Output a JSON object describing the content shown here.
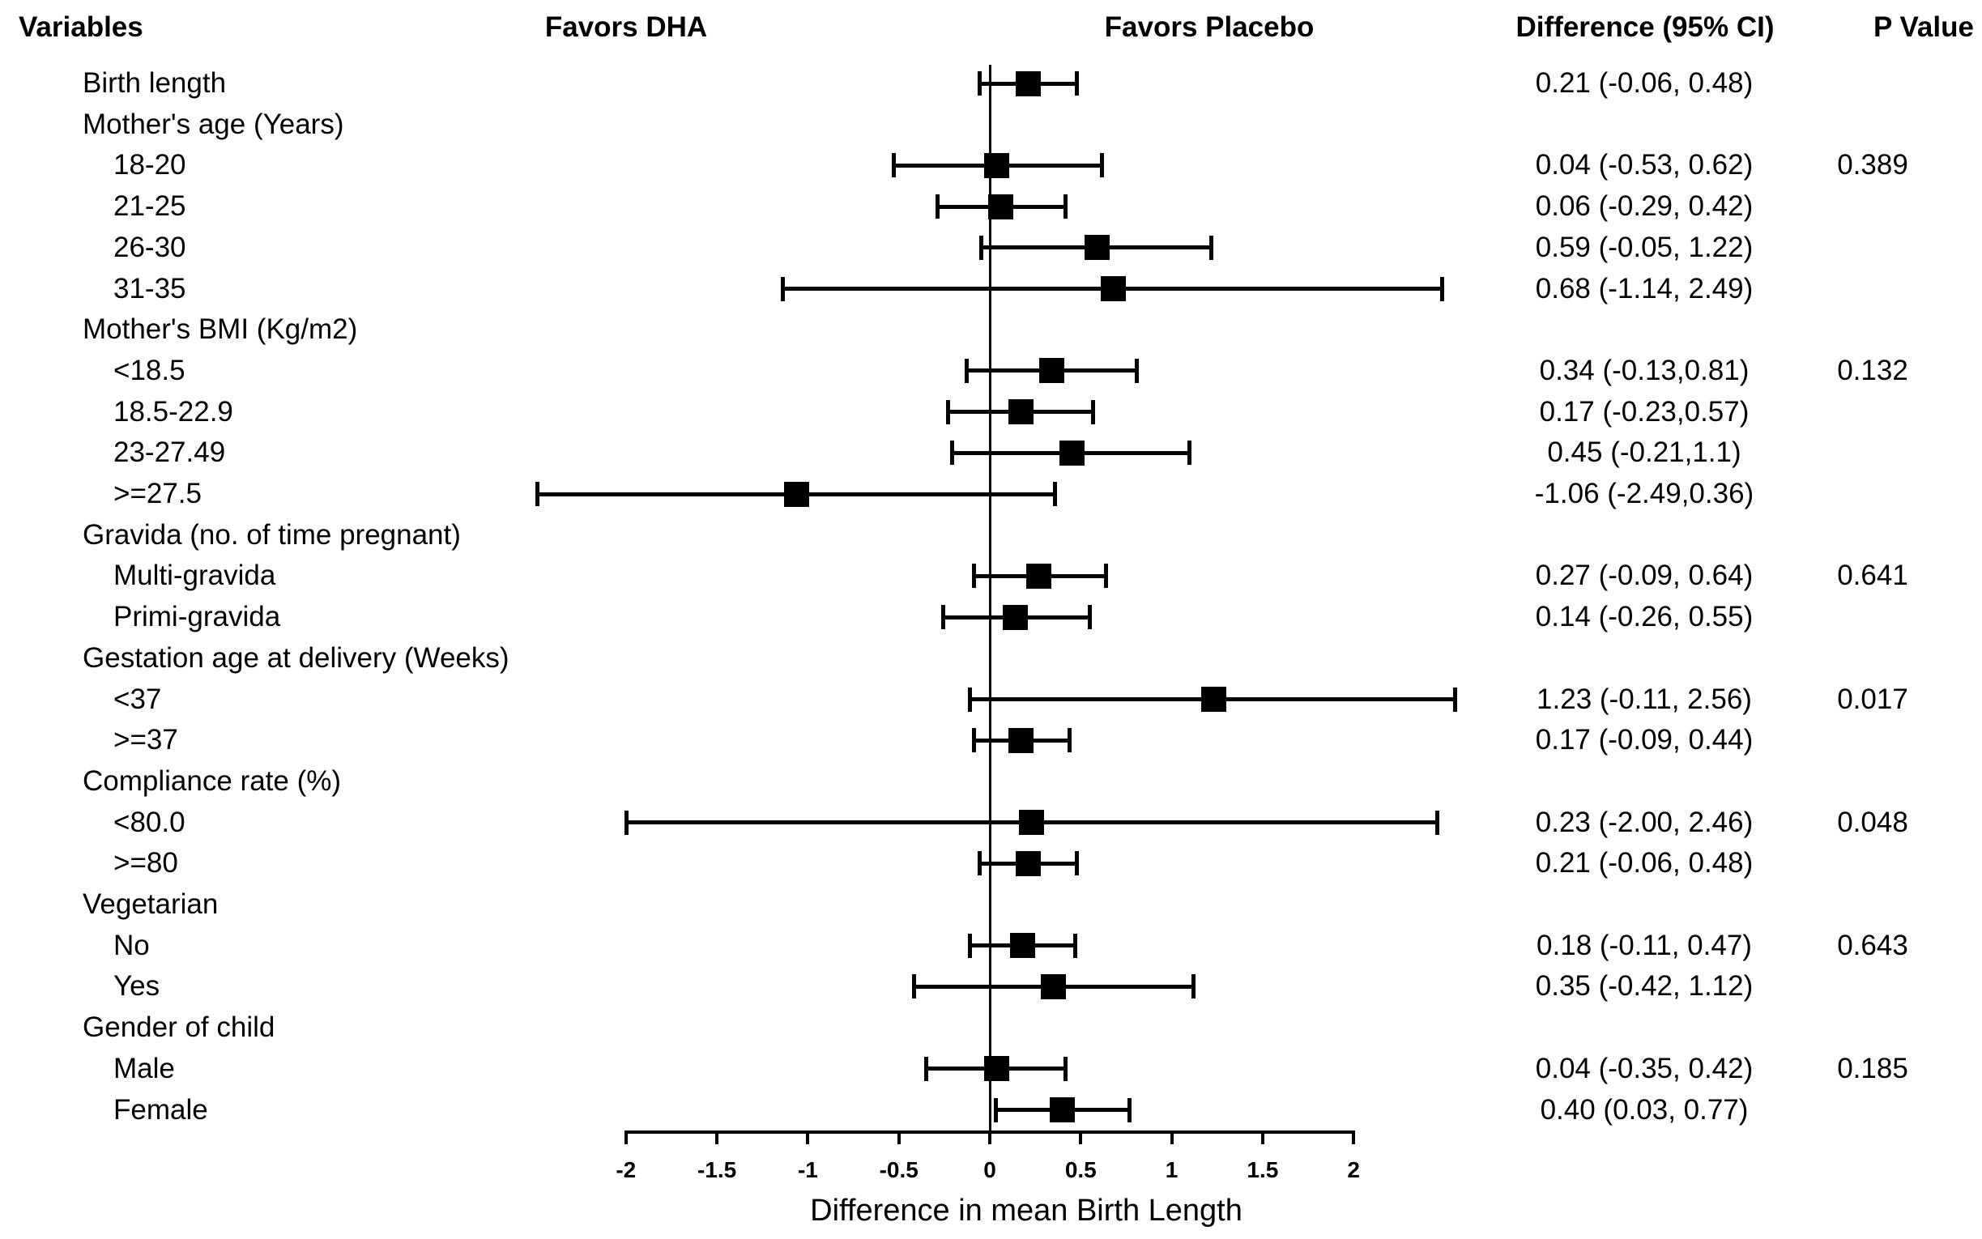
{
  "colors": {
    "foreground": "#000000",
    "background": "#ffffff"
  },
  "chart_data": {
    "type": "scatter",
    "subtype": "forest-plot",
    "title": "",
    "xlabel": "Difference in mean Birth Length",
    "columns": {
      "variables": "Variables",
      "favors_left": "Favors DHA",
      "favors_right": "Favors Placebo",
      "difference": "Difference (95% CI)",
      "p_value": "P Value"
    },
    "x_axis": {
      "min": -2,
      "max": 2,
      "tick_values": [
        -2,
        -1.5,
        -1,
        -0.5,
        0,
        0.5,
        1,
        1.5,
        2
      ],
      "tick_labels": [
        "-2",
        "-1.5",
        "-1",
        "-0.5",
        "0",
        "0.5",
        "1",
        "1.5",
        "2"
      ]
    },
    "reference_line": 0,
    "rows": [
      {
        "label": "Birth length",
        "kind": "data",
        "indent": 0,
        "estimate": 0.21,
        "lower": -0.06,
        "upper": 0.48,
        "ci_text": "0.21 (-0.06, 0.48)",
        "p_value": ""
      },
      {
        "label": "Mother's age (Years)",
        "kind": "group",
        "indent": 0
      },
      {
        "label": "18-20",
        "kind": "data",
        "indent": 1,
        "estimate": 0.04,
        "lower": -0.53,
        "upper": 0.62,
        "ci_text": "0.04 (-0.53, 0.62)",
        "p_value": "0.389"
      },
      {
        "label": "21-25",
        "kind": "data",
        "indent": 1,
        "estimate": 0.06,
        "lower": -0.29,
        "upper": 0.42,
        "ci_text": "0.06 (-0.29, 0.42)",
        "p_value": ""
      },
      {
        "label": "26-30",
        "kind": "data",
        "indent": 1,
        "estimate": 0.59,
        "lower": -0.05,
        "upper": 1.22,
        "ci_text": "0.59 (-0.05, 1.22)",
        "p_value": ""
      },
      {
        "label": "31-35",
        "kind": "data",
        "indent": 1,
        "estimate": 0.68,
        "lower": -1.14,
        "upper": 2.49,
        "ci_text": "0.68 (-1.14, 2.49)",
        "p_value": ""
      },
      {
        "label": "Mother's BMI (Kg/m2)",
        "kind": "group",
        "indent": 0
      },
      {
        "label": "<18.5",
        "kind": "data",
        "indent": 1,
        "estimate": 0.34,
        "lower": -0.13,
        "upper": 0.81,
        "ci_text": "0.34 (-0.13,0.81)",
        "p_value": "0.132"
      },
      {
        "label": "18.5-22.9",
        "kind": "data",
        "indent": 1,
        "estimate": 0.17,
        "lower": -0.23,
        "upper": 0.57,
        "ci_text": "0.17 (-0.23,0.57)",
        "p_value": ""
      },
      {
        "label": "23-27.49",
        "kind": "data",
        "indent": 1,
        "estimate": 0.45,
        "lower": -0.21,
        "upper": 1.1,
        "ci_text": "0.45 (-0.21,1.1)",
        "p_value": ""
      },
      {
        "label": ">=27.5",
        "kind": "data",
        "indent": 1,
        "estimate": -1.06,
        "lower": -2.49,
        "upper": 0.36,
        "ci_text": "-1.06 (-2.49,0.36)",
        "p_value": ""
      },
      {
        "label": "Gravida (no. of time pregnant)",
        "kind": "group",
        "indent": 0
      },
      {
        "label": "Multi-gravida",
        "kind": "data",
        "indent": 1,
        "estimate": 0.27,
        "lower": -0.09,
        "upper": 0.64,
        "ci_text": "0.27 (-0.09, 0.64)",
        "p_value": "0.641"
      },
      {
        "label": "Primi-gravida",
        "kind": "data",
        "indent": 1,
        "estimate": 0.14,
        "lower": -0.26,
        "upper": 0.55,
        "ci_text": "0.14 (-0.26, 0.55)",
        "p_value": ""
      },
      {
        "label": "Gestation age at delivery (Weeks)",
        "kind": "group",
        "indent": 0
      },
      {
        "label": "<37",
        "kind": "data",
        "indent": 1,
        "estimate": 1.23,
        "lower": -0.11,
        "upper": 2.56,
        "ci_text": "1.23 (-0.11, 2.56)",
        "p_value": "0.017"
      },
      {
        "label": ">=37",
        "kind": "data",
        "indent": 1,
        "estimate": 0.17,
        "lower": -0.09,
        "upper": 0.44,
        "ci_text": "0.17 (-0.09, 0.44)",
        "p_value": ""
      },
      {
        "label": "Compliance rate (%)",
        "kind": "group",
        "indent": 0
      },
      {
        "label": "<80.0",
        "kind": "data",
        "indent": 1,
        "estimate": 0.23,
        "lower": -2.0,
        "upper": 2.46,
        "ci_text": "0.23 (-2.00, 2.46)",
        "p_value": "0.048"
      },
      {
        "label": ">=80",
        "kind": "data",
        "indent": 1,
        "estimate": 0.21,
        "lower": -0.06,
        "upper": 0.48,
        "ci_text": "0.21 (-0.06, 0.48)",
        "p_value": ""
      },
      {
        "label": "Vegetarian",
        "kind": "group",
        "indent": 0
      },
      {
        "label": "No",
        "kind": "data",
        "indent": 1,
        "estimate": 0.18,
        "lower": -0.11,
        "upper": 0.47,
        "ci_text": "0.18 (-0.11, 0.47)",
        "p_value": "0.643"
      },
      {
        "label": "Yes",
        "kind": "data",
        "indent": 1,
        "estimate": 0.35,
        "lower": -0.42,
        "upper": 1.12,
        "ci_text": "0.35 (-0.42, 1.12)",
        "p_value": ""
      },
      {
        "label": "Gender of child",
        "kind": "group",
        "indent": 0
      },
      {
        "label": "Male",
        "kind": "data",
        "indent": 1,
        "estimate": 0.04,
        "lower": -0.35,
        "upper": 0.42,
        "ci_text": "0.04 (-0.35, 0.42)",
        "p_value": "0.185"
      },
      {
        "label": "Female",
        "kind": "data",
        "indent": 1,
        "estimate": 0.4,
        "lower": 0.03,
        "upper": 0.77,
        "ci_text": "0.40 (0.03, 0.77)",
        "p_value": ""
      }
    ]
  }
}
